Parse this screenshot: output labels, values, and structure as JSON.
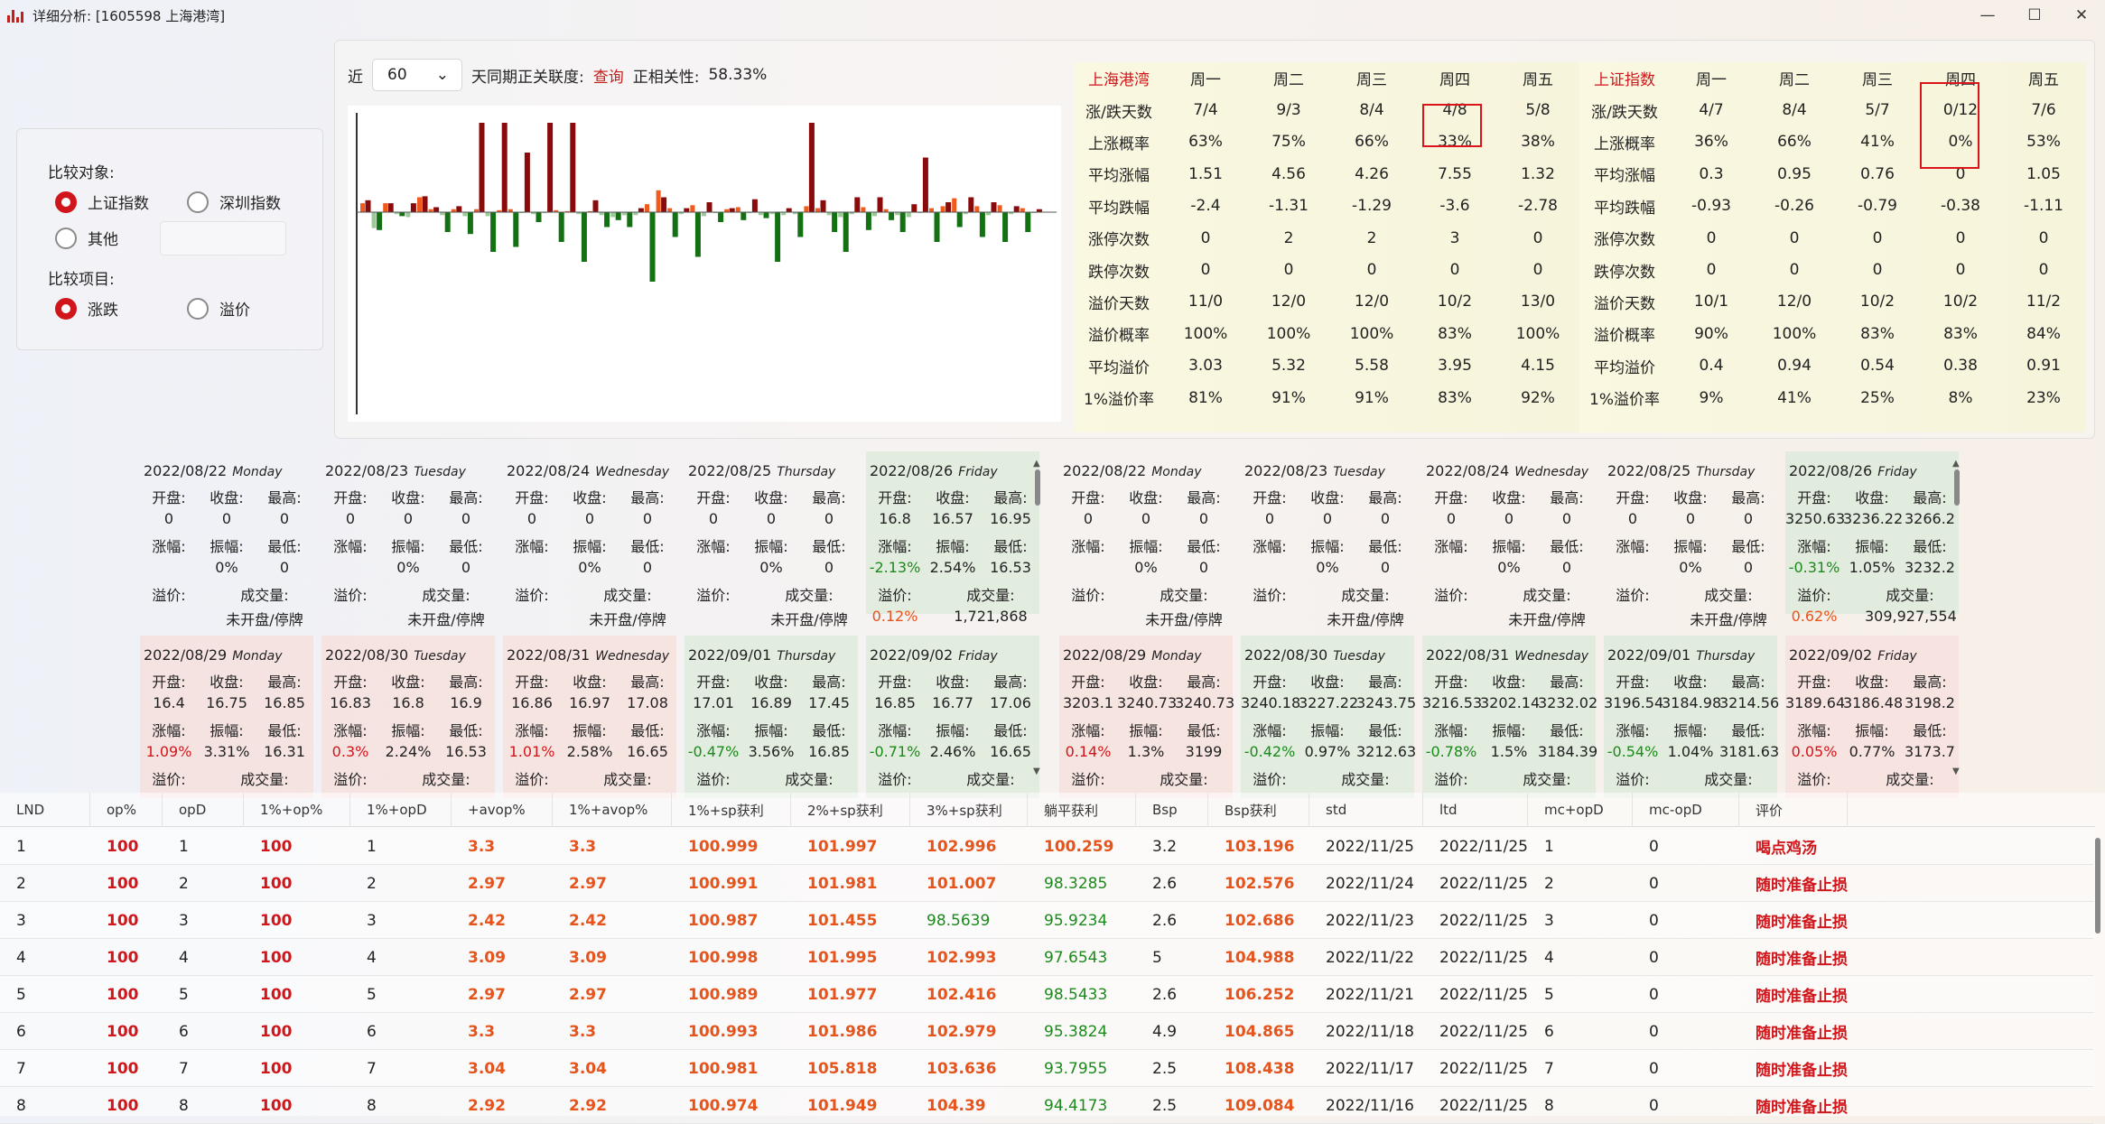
{
  "window": {
    "title": "详细分析: [1605598 上海港湾]",
    "minimize": "—",
    "maximize": "☐",
    "close": "✕"
  },
  "compare": {
    "target_label": "比较对象:",
    "opt_sh": "上证指数",
    "opt_sz": "深圳指数",
    "opt_other": "其他",
    "item_label": "比较项目:",
    "opt_change": "涨跌",
    "opt_premium": "溢价"
  },
  "controls": {
    "near": "近",
    "days": "60",
    "text": "天同期正关联度:",
    "query": "查询",
    "corr_label": "正相关性:",
    "corr_value": "58.33%"
  },
  "chart_data": {
    "type": "bar",
    "series": [
      {
        "values": [
          0.9,
          -1.6,
          0.9,
          -0.2,
          -0.5,
          1.5,
          0.3,
          -0.3,
          0.3,
          -0.4,
          0.3,
          -0.4,
          0.2,
          0.3,
          -0.1,
          -0.2,
          -0.1,
          0.2,
          0.1,
          -0.2,
          0.1,
          -0.3,
          -0.5,
          -0.3,
          -0.3,
          0.8,
          2.2,
          0.4,
          -0.2,
          0.7,
          -0.4,
          -0.1,
          0.3,
          0.5,
          -0.1,
          -0.3,
          -0.2,
          -0.3,
          -0.2,
          0.6,
          0.4,
          -0.3,
          -0.5,
          -0.2,
          0.5,
          -0.4,
          0.3,
          -0.3,
          -0.5,
          -0.1,
          0.4,
          0.6,
          1.4,
          -0.2,
          0.6,
          -0.3,
          0.7,
          -0.2,
          0.4,
          -0.1
        ]
      },
      {
        "values": [
          1.2,
          -1.8,
          0.9,
          -0.4,
          0.9,
          1.6,
          0.5,
          -2.0,
          0.6,
          -2.2,
          9.0,
          -4.0,
          9.0,
          -3.5,
          6.0,
          -1.0,
          9.0,
          -3.0,
          9.0,
          -5.0,
          1.2,
          -1.5,
          -0.8,
          -1.5,
          0.4,
          -7.0,
          1.5,
          -2.5,
          0.4,
          -4.5,
          1.0,
          -1.0,
          0.4,
          -0.8,
          1.3,
          -0.6,
          -5.0,
          0.4,
          -2.5,
          9.0,
          1.2,
          -2.0,
          -4.0,
          1.5,
          -1.8,
          1.5,
          -0.8,
          -2.0,
          0.8,
          5.5,
          -3.0,
          1.0,
          -1.5,
          1.5,
          -2.5,
          1.0,
          -3.0,
          0.6,
          -2.0,
          0.3
        ]
      }
    ]
  },
  "stats_left": {
    "title": "上海港湾",
    "days": [
      "周一",
      "周二",
      "周三",
      "周四",
      "周五"
    ],
    "rows": [
      {
        "label": "涨/跌天数",
        "v": [
          "7/4",
          "9/3",
          "8/4",
          "4/8",
          "5/8"
        ]
      },
      {
        "label": "上涨概率",
        "v": [
          "63%",
          "75%",
          "66%",
          "33%",
          "38%"
        ]
      },
      {
        "label": "平均涨幅",
        "v": [
          "1.51",
          "4.56",
          "4.26",
          "7.55",
          "1.32"
        ]
      },
      {
        "label": "平均跌幅",
        "v": [
          "-2.4",
          "-1.31",
          "-1.29",
          "-3.6",
          "-2.78"
        ]
      },
      {
        "label": "涨停次数",
        "v": [
          "0",
          "2",
          "2",
          "3",
          "0"
        ]
      },
      {
        "label": "跌停次数",
        "v": [
          "0",
          "0",
          "0",
          "0",
          "0"
        ]
      },
      {
        "label": "溢价天数",
        "v": [
          "11/0",
          "12/0",
          "12/0",
          "10/2",
          "13/0"
        ]
      },
      {
        "label": "溢价概率",
        "v": [
          "100%",
          "100%",
          "100%",
          "83%",
          "100%"
        ]
      },
      {
        "label": "平均溢价",
        "v": [
          "3.03",
          "5.32",
          "5.58",
          "3.95",
          "4.15"
        ]
      },
      {
        "label": "1%溢价率",
        "v": [
          "81%",
          "91%",
          "91%",
          "83%",
          "92%"
        ]
      }
    ]
  },
  "stats_right": {
    "title": "上证指数",
    "days": [
      "周一",
      "周二",
      "周三",
      "周四",
      "周五"
    ],
    "rows": [
      {
        "label": "涨/跌天数",
        "v": [
          "4/7",
          "8/4",
          "5/7",
          "0/12",
          "7/6"
        ]
      },
      {
        "label": "上涨概率",
        "v": [
          "36%",
          "66%",
          "41%",
          "0%",
          "53%"
        ]
      },
      {
        "label": "平均涨幅",
        "v": [
          "0.3",
          "0.95",
          "0.76",
          "0",
          "1.05"
        ]
      },
      {
        "label": "平均跌幅",
        "v": [
          "-0.93",
          "-0.26",
          "-0.79",
          "-0.38",
          "-1.11"
        ]
      },
      {
        "label": "涨停次数",
        "v": [
          "0",
          "0",
          "0",
          "0",
          "0"
        ]
      },
      {
        "label": "跌停次数",
        "v": [
          "0",
          "0",
          "0",
          "0",
          "0"
        ]
      },
      {
        "label": "溢价天数",
        "v": [
          "10/1",
          "12/0",
          "10/2",
          "10/2",
          "11/2"
        ]
      },
      {
        "label": "溢价概率",
        "v": [
          "90%",
          "100%",
          "83%",
          "83%",
          "84%"
        ]
      },
      {
        "label": "平均溢价",
        "v": [
          "0.4",
          "0.94",
          "0.54",
          "0.38",
          "0.91"
        ]
      },
      {
        "label": "1%溢价率",
        "v": [
          "9%",
          "41%",
          "25%",
          "8%",
          "23%"
        ]
      }
    ]
  },
  "labels": {
    "open": "开盘:",
    "close": "收盘:",
    "high": "最高:",
    "chg": "涨幅:",
    "amp": "振幅:",
    "low": "最低:",
    "prem": "溢价:",
    "vol": "成交量:"
  },
  "cards_left": [
    {
      "date": "2022/08/22",
      "dow": "Monday",
      "open": "0",
      "close": "0",
      "high": "0",
      "chg": "",
      "amp": "0%",
      "low": "0",
      "prem": "",
      "vol": "未开盘/停牌",
      "tone": "none"
    },
    {
      "date": "2022/08/23",
      "dow": "Tuesday",
      "open": "0",
      "close": "0",
      "high": "0",
      "chg": "",
      "amp": "0%",
      "low": "0",
      "prem": "",
      "vol": "未开盘/停牌",
      "tone": "none"
    },
    {
      "date": "2022/08/24",
      "dow": "Wednesday",
      "open": "0",
      "close": "0",
      "high": "0",
      "chg": "",
      "amp": "0%",
      "low": "0",
      "prem": "",
      "vol": "未开盘/停牌",
      "tone": "none"
    },
    {
      "date": "2022/08/25",
      "dow": "Thursday",
      "open": "0",
      "close": "0",
      "high": "0",
      "chg": "",
      "amp": "0%",
      "low": "0",
      "prem": "",
      "vol": "未开盘/停牌",
      "tone": "none"
    },
    {
      "date": "2022/08/26",
      "dow": "Friday",
      "open": "16.8",
      "close": "16.57",
      "high": "16.95",
      "chg": "-2.13%",
      "amp": "2.54%",
      "low": "16.53",
      "prem": "0.12%",
      "vol": "1,721,868",
      "tone": "down"
    },
    {
      "date": "2022/08/29",
      "dow": "Monday",
      "open": "16.4",
      "close": "16.75",
      "high": "16.85",
      "chg": "1.09%",
      "amp": "3.31%",
      "low": "16.31",
      "prem": "",
      "vol": "",
      "tone": "up"
    },
    {
      "date": "2022/08/30",
      "dow": "Tuesday",
      "open": "16.83",
      "close": "16.8",
      "high": "16.9",
      "chg": "0.3%",
      "amp": "2.24%",
      "low": "16.53",
      "prem": "",
      "vol": "",
      "tone": "up"
    },
    {
      "date": "2022/08/31",
      "dow": "Wednesday",
      "open": "16.86",
      "close": "16.97",
      "high": "17.08",
      "chg": "1.01%",
      "amp": "2.58%",
      "low": "16.65",
      "prem": "",
      "vol": "",
      "tone": "up"
    },
    {
      "date": "2022/09/01",
      "dow": "Thursday",
      "open": "17.01",
      "close": "16.89",
      "high": "17.45",
      "chg": "-0.47%",
      "amp": "3.56%",
      "low": "16.85",
      "prem": "",
      "vol": "",
      "tone": "down"
    },
    {
      "date": "2022/09/02",
      "dow": "Friday",
      "open": "16.85",
      "close": "16.77",
      "high": "17.06",
      "chg": "-0.71%",
      "amp": "2.46%",
      "low": "16.65",
      "prem": "",
      "vol": "",
      "tone": "down"
    }
  ],
  "cards_right": [
    {
      "date": "2022/08/22",
      "dow": "Monday",
      "open": "0",
      "close": "0",
      "high": "0",
      "chg": "",
      "amp": "0%",
      "low": "0",
      "prem": "",
      "vol": "未开盘/停牌",
      "tone": "none"
    },
    {
      "date": "2022/08/23",
      "dow": "Tuesday",
      "open": "0",
      "close": "0",
      "high": "0",
      "chg": "",
      "amp": "0%",
      "low": "0",
      "prem": "",
      "vol": "未开盘/停牌",
      "tone": "none"
    },
    {
      "date": "2022/08/24",
      "dow": "Wednesday",
      "open": "0",
      "close": "0",
      "high": "0",
      "chg": "",
      "amp": "0%",
      "low": "0",
      "prem": "",
      "vol": "未开盘/停牌",
      "tone": "none"
    },
    {
      "date": "2022/08/25",
      "dow": "Thursday",
      "open": "0",
      "close": "0",
      "high": "0",
      "chg": "",
      "amp": "0%",
      "low": "0",
      "prem": "",
      "vol": "未开盘/停牌",
      "tone": "none"
    },
    {
      "date": "2022/08/26",
      "dow": "Friday",
      "open": "3250.63",
      "close": "3236.22",
      "high": "3266.2",
      "chg": "-0.31%",
      "amp": "1.05%",
      "low": "3232.2",
      "prem": "0.62%",
      "vol": "309,927,554",
      "tone": "down"
    },
    {
      "date": "2022/08/29",
      "dow": "Monday",
      "open": "3203.1",
      "close": "3240.73",
      "high": "3240.73",
      "chg": "0.14%",
      "amp": "1.3%",
      "low": "3199",
      "prem": "",
      "vol": "",
      "tone": "up"
    },
    {
      "date": "2022/08/30",
      "dow": "Tuesday",
      "open": "3240.18",
      "close": "3227.22",
      "high": "3243.75",
      "chg": "-0.42%",
      "amp": "0.97%",
      "low": "3212.63",
      "prem": "",
      "vol": "",
      "tone": "down"
    },
    {
      "date": "2022/08/31",
      "dow": "Wednesday",
      "open": "3216.53",
      "close": "3202.14",
      "high": "3232.02",
      "chg": "-0.78%",
      "amp": "1.5%",
      "low": "3184.39",
      "prem": "",
      "vol": "",
      "tone": "down"
    },
    {
      "date": "2022/09/01",
      "dow": "Thursday",
      "open": "3196.54",
      "close": "3184.98",
      "high": "3214.56",
      "chg": "-0.54%",
      "amp": "1.04%",
      "low": "3181.63",
      "prem": "",
      "vol": "",
      "tone": "down"
    },
    {
      "date": "2022/09/02",
      "dow": "Friday",
      "open": "3189.64",
      "close": "3186.48",
      "high": "3198.2",
      "chg": "0.05%",
      "amp": "0.77%",
      "low": "3173.7",
      "prem": "",
      "vol": "",
      "tone": "up"
    }
  ],
  "table": {
    "headers": [
      "LND",
      "op%",
      "opD",
      "1%+op%",
      "1%+opD",
      "+avop%",
      "1%+avop%",
      "1%+sp获利",
      "2%+sp获利",
      "3%+sp获利",
      "躺平获利",
      "Bsp",
      "Bsp获利",
      "std",
      "ltd",
      "mc+opD",
      "mc-opD",
      "评价"
    ],
    "rows": [
      [
        "1",
        "100",
        "1",
        "100",
        "1",
        "3.3",
        "3.3",
        "100.999",
        "101.997",
        "102.996",
        "100.259",
        "3.2",
        "103.196",
        "2022/11/25",
        "2022/11/25",
        "1",
        "0",
        "喝点鸡汤"
      ],
      [
        "2",
        "100",
        "2",
        "100",
        "2",
        "2.97",
        "2.97",
        "100.991",
        "101.981",
        "101.007",
        "98.3285",
        "2.6",
        "102.576",
        "2022/11/24",
        "2022/11/25",
        "2",
        "0",
        "随时准备止损"
      ],
      [
        "3",
        "100",
        "3",
        "100",
        "3",
        "2.42",
        "2.42",
        "100.987",
        "101.455",
        "98.5639",
        "95.9234",
        "2.6",
        "102.686",
        "2022/11/23",
        "2022/11/25",
        "3",
        "0",
        "随时准备止损"
      ],
      [
        "4",
        "100",
        "4",
        "100",
        "4",
        "3.09",
        "3.09",
        "100.998",
        "101.995",
        "102.993",
        "97.6543",
        "5",
        "104.988",
        "2022/11/22",
        "2022/11/25",
        "4",
        "0",
        "随时准备止损"
      ],
      [
        "5",
        "100",
        "5",
        "100",
        "5",
        "2.97",
        "2.97",
        "100.989",
        "101.977",
        "102.416",
        "98.5433",
        "2.6",
        "106.252",
        "2022/11/21",
        "2022/11/25",
        "5",
        "0",
        "随时准备止损"
      ],
      [
        "6",
        "100",
        "6",
        "100",
        "6",
        "3.3",
        "3.3",
        "100.993",
        "101.986",
        "102.979",
        "95.3824",
        "4.9",
        "104.865",
        "2022/11/18",
        "2022/11/25",
        "6",
        "0",
        "随时准备止损"
      ],
      [
        "7",
        "100",
        "7",
        "100",
        "7",
        "3.04",
        "3.04",
        "100.981",
        "105.818",
        "103.636",
        "93.7955",
        "2.5",
        "108.438",
        "2022/11/17",
        "2022/11/25",
        "7",
        "0",
        "随时准备止损"
      ],
      [
        "8",
        "100",
        "8",
        "100",
        "8",
        "2.92",
        "2.92",
        "100.974",
        "101.949",
        "104.39",
        "94.4173",
        "2.5",
        "109.084",
        "2022/11/16",
        "2022/11/25",
        "8",
        "0",
        "随时准备止损"
      ]
    ]
  }
}
